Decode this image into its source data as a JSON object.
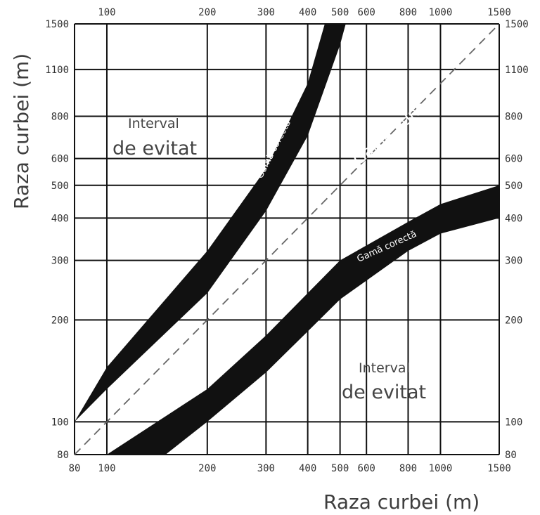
{
  "chart_data": {
    "type": "area",
    "x_ticks": [
      80,
      100,
      200,
      300,
      400,
      500,
      600,
      800,
      1000,
      1500
    ],
    "x_ticks_top": [
      100,
      200,
      300,
      400,
      500,
      600,
      800,
      1000,
      1500
    ],
    "y_ticks": [
      80,
      100,
      200,
      300,
      400,
      500,
      600,
      800,
      1100,
      1500
    ],
    "xlim": [
      80,
      1500
    ],
    "ylim": [
      80,
      1500
    ],
    "xlabel": "Raza curbei (m)",
    "ylabel": "Raza curbei (m)",
    "diagonal_label": "Gamă bună",
    "annotations": {
      "region_upper_line1": "Interval",
      "region_upper_line2": "de evitat",
      "region_lower_line1": "Interval",
      "region_lower_line2": "de evitat",
      "band_upper_label": "Gamă corectă",
      "band_lower_label": "Gamă corectă"
    },
    "band_upper": {
      "outer": [
        [
          80,
          100
        ],
        [
          100,
          145
        ],
        [
          200,
          320
        ],
        [
          300,
          560
        ],
        [
          400,
          1000
        ],
        [
          450,
          1500
        ]
      ],
      "inner": [
        [
          80,
          100
        ],
        [
          100,
          125
        ],
        [
          200,
          240
        ],
        [
          300,
          420
        ],
        [
          400,
          700
        ],
        [
          500,
          1300
        ],
        [
          520,
          1500
        ]
      ]
    },
    "band_lower": {
      "outer": [
        [
          100,
          80
        ],
        [
          200,
          125
        ],
        [
          300,
          180
        ],
        [
          400,
          240
        ],
        [
          500,
          300
        ],
        [
          800,
          390
        ],
        [
          1000,
          440
        ],
        [
          1500,
          500
        ]
      ],
      "inner": [
        [
          150,
          80
        ],
        [
          200,
          100
        ],
        [
          300,
          140
        ],
        [
          400,
          185
        ],
        [
          500,
          230
        ],
        [
          800,
          320
        ],
        [
          1000,
          360
        ],
        [
          1500,
          400
        ]
      ]
    }
  }
}
